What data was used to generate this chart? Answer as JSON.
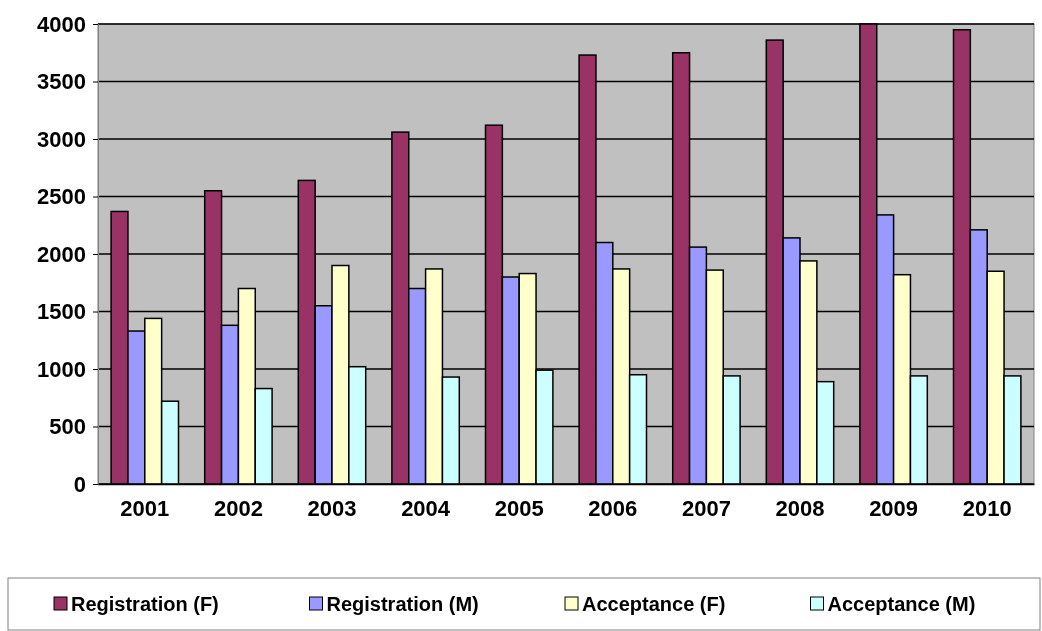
{
  "chart_data": {
    "type": "bar",
    "categories": [
      "2001",
      "2002",
      "2003",
      "2004",
      "2005",
      "2006",
      "2007",
      "2008",
      "2009",
      "2010"
    ],
    "series": [
      {
        "name": "Registration (F)",
        "color": "#993366",
        "values": [
          2370,
          2550,
          2640,
          3060,
          3120,
          3730,
          3750,
          3860,
          4000,
          3950
        ]
      },
      {
        "name": "Registration (M)",
        "color": "#9999ff",
        "values": [
          1330,
          1380,
          1550,
          1700,
          1800,
          2100,
          2060,
          2140,
          2340,
          2210
        ]
      },
      {
        "name": "Acceptance (F)",
        "color": "#ffffcc",
        "values": [
          1440,
          1700,
          1900,
          1870,
          1830,
          1870,
          1860,
          1940,
          1820,
          1850
        ]
      },
      {
        "name": "Acceptance (M)",
        "color": "#ccffff",
        "values": [
          720,
          830,
          1020,
          930,
          990,
          950,
          940,
          890,
          940,
          940
        ]
      }
    ],
    "ylim": [
      0,
      4000
    ],
    "yticks": [
      0,
      500,
      1000,
      1500,
      2000,
      2500,
      3000,
      3500,
      4000
    ],
    "grid": "y",
    "legend": "bottom"
  }
}
